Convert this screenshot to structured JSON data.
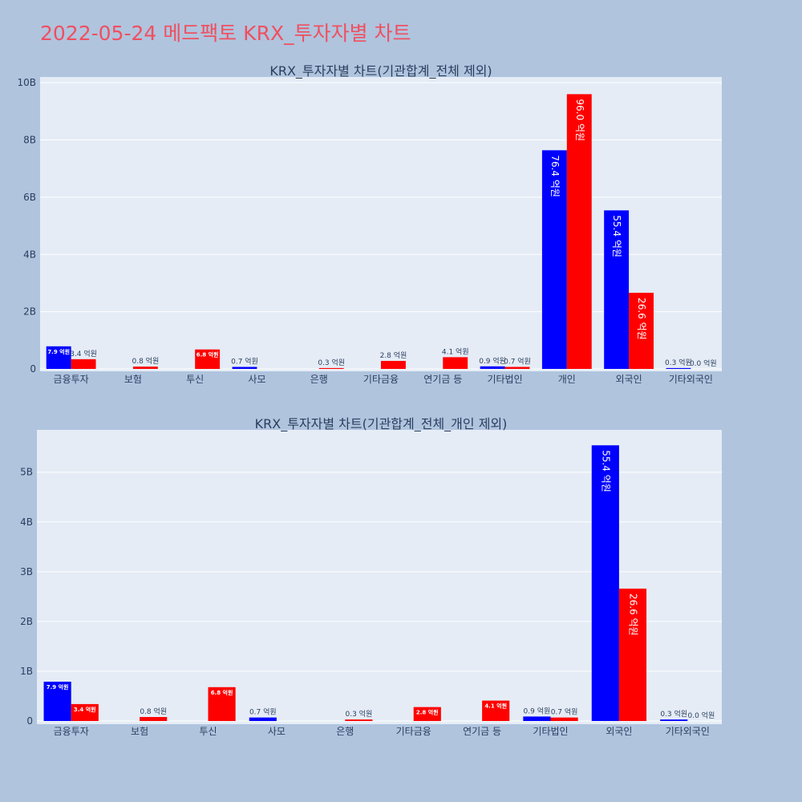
{
  "title": "2022-05-24 메드팩토 KRX_투자자별 차트",
  "colors": {
    "page_bg": "#b0c4de",
    "plot_bg": "#e5ecf6",
    "grid": "#ffffff",
    "buy": "#0000ff",
    "sell": "#ff0000",
    "title": "#ef5060",
    "text": "#2a3f5f"
  },
  "chart_data": [
    {
      "type": "bar",
      "title": "KRX_투자자별 차트(기관합계_전체 제외)",
      "categories": [
        "금융투자",
        "보험",
        "투신",
        "사모",
        "은행",
        "기타금융",
        "연기금 등",
        "기타법인",
        "개인",
        "외국인",
        "기타외국인"
      ],
      "series": [
        {
          "color": "#0000ff",
          "values": [
            0.79,
            0.0,
            0.0,
            0.07,
            0.0,
            0.0,
            0.0,
            0.09,
            7.64,
            5.54,
            0.03
          ],
          "labels": [
            "7.9 억원",
            "",
            "",
            "0.7 억원",
            "",
            "",
            "",
            "0.9 억원",
            "76.4 억원",
            "55.4 억원",
            "0.3 억원"
          ]
        },
        {
          "color": "#ff0000",
          "values": [
            0.34,
            0.08,
            0.68,
            0.0,
            0.03,
            0.28,
            0.41,
            0.07,
            9.6,
            2.66,
            0.0
          ],
          "labels": [
            "3.4 억원",
            "0.8 억원",
            "6.8 억원",
            "",
            "0.3 억원",
            "2.8 억원",
            "4.1 억원",
            "0.7 억원",
            "96.0 억원",
            "26.6 억원",
            "0.0 억원"
          ]
        }
      ],
      "y_ticks": [
        0,
        2,
        4,
        6,
        8,
        10
      ],
      "y_tick_labels": [
        "0",
        "2B",
        "4B",
        "6B",
        "8B",
        "10B"
      ],
      "ylim": [
        0,
        10.2
      ],
      "grid": true,
      "legend": "none"
    },
    {
      "type": "bar",
      "title": "KRX_투자자별 차트(기관합계_전체_개인 제외)",
      "categories": [
        "금융투자",
        "보험",
        "투신",
        "사모",
        "은행",
        "기타금융",
        "연기금 등",
        "기타법인",
        "외국인",
        "기타외국인"
      ],
      "series": [
        {
          "color": "#0000ff",
          "values": [
            0.79,
            0.0,
            0.0,
            0.07,
            0.0,
            0.0,
            0.0,
            0.09,
            5.54,
            0.03
          ],
          "labels": [
            "7.9 억원",
            "",
            "",
            "0.7 억원",
            "",
            "",
            "",
            "0.9 억원",
            "55.4 억원",
            "0.3 억원"
          ]
        },
        {
          "color": "#ff0000",
          "values": [
            0.34,
            0.08,
            0.68,
            0.0,
            0.03,
            0.28,
            0.41,
            0.07,
            2.66,
            0.0
          ],
          "labels": [
            "3.4 억원",
            "0.8 억원",
            "6.8 억원",
            "",
            "0.3 억원",
            "2.8 억원",
            "4.1 억원",
            "0.7 억원",
            "26.6 억원",
            "0.0 억원"
          ]
        }
      ],
      "y_ticks": [
        0,
        1,
        2,
        3,
        4,
        5
      ],
      "y_tick_labels": [
        "0",
        "1B",
        "2B",
        "3B",
        "4B",
        "5B"
      ],
      "ylim": [
        0,
        5.85
      ],
      "grid": true,
      "legend": "none"
    }
  ]
}
